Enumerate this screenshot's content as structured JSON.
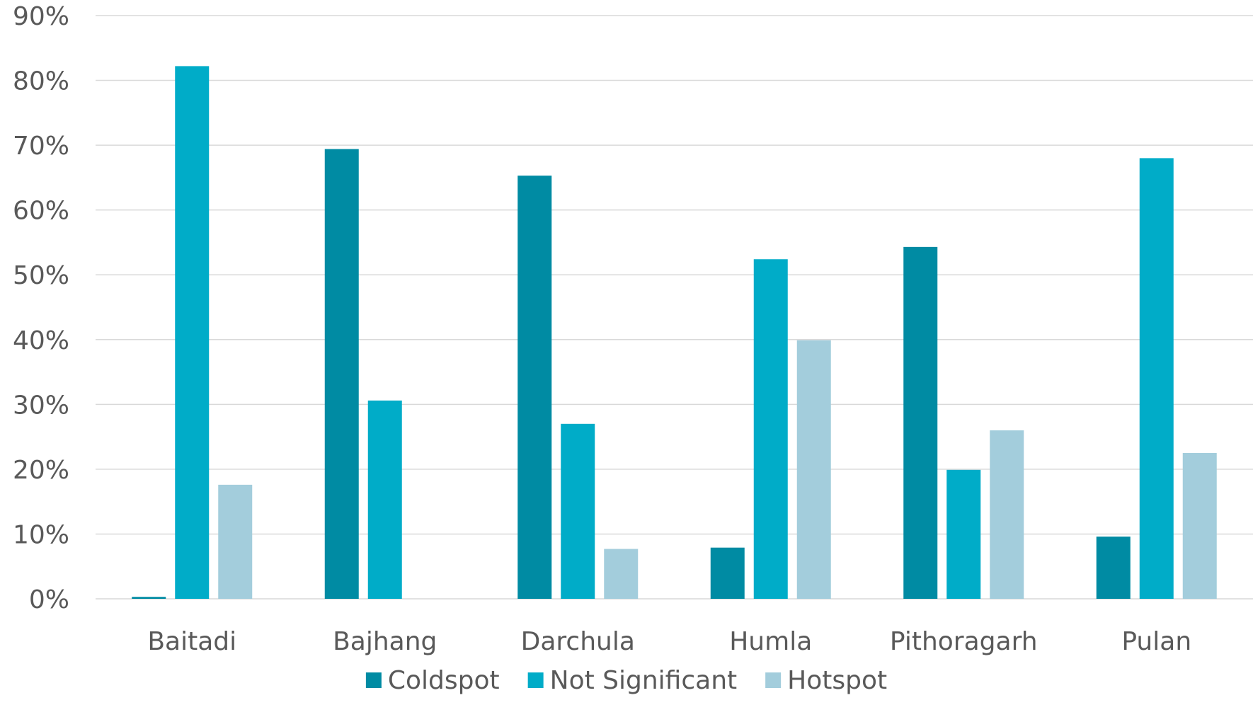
{
  "chart_data": {
    "type": "bar",
    "categories": [
      "Baitadi",
      "Bajhang",
      "Darchula",
      "Humla",
      "Pithoragarh",
      "Pulan"
    ],
    "series": [
      {
        "name": "Coldspot",
        "color": "#008ba3",
        "values": [
          0.3,
          69.4,
          65.3,
          7.9,
          54.3,
          9.6
        ]
      },
      {
        "name": "Not Significant",
        "color": "#00acc8",
        "values": [
          82.2,
          30.6,
          27.0,
          52.4,
          19.9,
          68.0
        ]
      },
      {
        "name": "Hotspot",
        "color": "#a3cddc",
        "values": [
          17.6,
          0,
          7.7,
          39.9,
          26.0,
          22.5
        ]
      }
    ],
    "y_ticks": [
      "0%",
      "10%",
      "20%",
      "30%",
      "40%",
      "50%",
      "60%",
      "70%",
      "80%",
      "90%"
    ],
    "ylim": [
      0,
      90
    ],
    "grid": true,
    "legend_position": "bottom"
  }
}
